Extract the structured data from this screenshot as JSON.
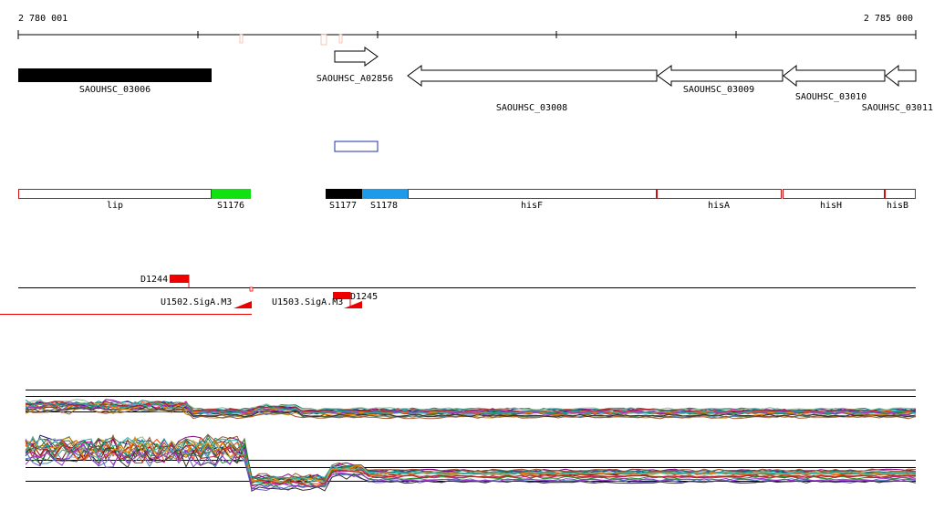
{
  "ruler": {
    "start_label": "2 780 001",
    "end_label": "2 785 000",
    "start_coord": 2780001,
    "end_coord": 2785000
  },
  "genes": [
    {
      "id": "SAOUHSC_03006",
      "start": 2780001,
      "end": 2781082,
      "strand": "none",
      "style": "solid"
    },
    {
      "id": "SAOUHSC_A02856",
      "start": 2781760,
      "end": 2782000,
      "strand": "+",
      "style": "arrow"
    },
    {
      "id": "SAOUHSC_03008",
      "start": 2782165,
      "end": 2783535,
      "strand": "-",
      "style": "arrow"
    },
    {
      "id": "SAOUHSC_03009",
      "start": 2783535,
      "end": 2784240,
      "strand": "-",
      "style": "arrow"
    },
    {
      "id": "SAOUHSC_03010",
      "start": 2784240,
      "end": 2784825,
      "strand": "-",
      "style": "arrow"
    },
    {
      "id": "SAOUHSC_03011",
      "start": 2784825,
      "end": 2785000,
      "strand": "-",
      "style": "arrow"
    }
  ],
  "feature_box": {
    "start": 2781760,
    "end": 2782000,
    "color": "#1f2fa8"
  },
  "segments": [
    {
      "label": "lip",
      "start": 2780001,
      "end": 2781082,
      "color": "#ffffff",
      "border": "#cc1010"
    },
    {
      "label": "S1176",
      "start": 2781082,
      "end": 2781295,
      "color": "#11e011",
      "border": "#11e011"
    },
    {
      "label": "S1177",
      "start": 2781700,
      "end": 2781905,
      "color": "#000000",
      "border": "#000000"
    },
    {
      "label": "S1178",
      "start": 2781905,
      "end": 2782160,
      "color": "#1e9ae8",
      "border": "#1e9ae8"
    },
    {
      "label": "hisF",
      "start": 2782160,
      "end": 2783545,
      "color": "#ffffff",
      "border": "#cc1010"
    },
    {
      "label": "hisA",
      "start": 2783545,
      "end": 2784240,
      "color": "#ffffff",
      "border": "#cc1010"
    },
    {
      "label": "hisH",
      "start": 2784240,
      "end": 2784825,
      "color": "#ffffff",
      "border": "#cc1010"
    },
    {
      "label": "hisB",
      "start": 2784825,
      "end": 2785000,
      "color": "#ffffff",
      "border": "#cc1010"
    }
  ],
  "regulatory": {
    "d_features": [
      {
        "label": "D1244",
        "start": 2780850,
        "end": 2780955
      },
      {
        "label": "D1245",
        "start": 2781735,
        "end": 2781830
      }
    ],
    "u_features": [
      {
        "label": "U1502.SigA.M3",
        "tip_end": 2781295
      },
      {
        "label": "U1503.SigA.M3",
        "tip_end": 2781900
      }
    ]
  },
  "colors": {
    "accent_red": "#ee0000",
    "track_line": "#000000"
  }
}
